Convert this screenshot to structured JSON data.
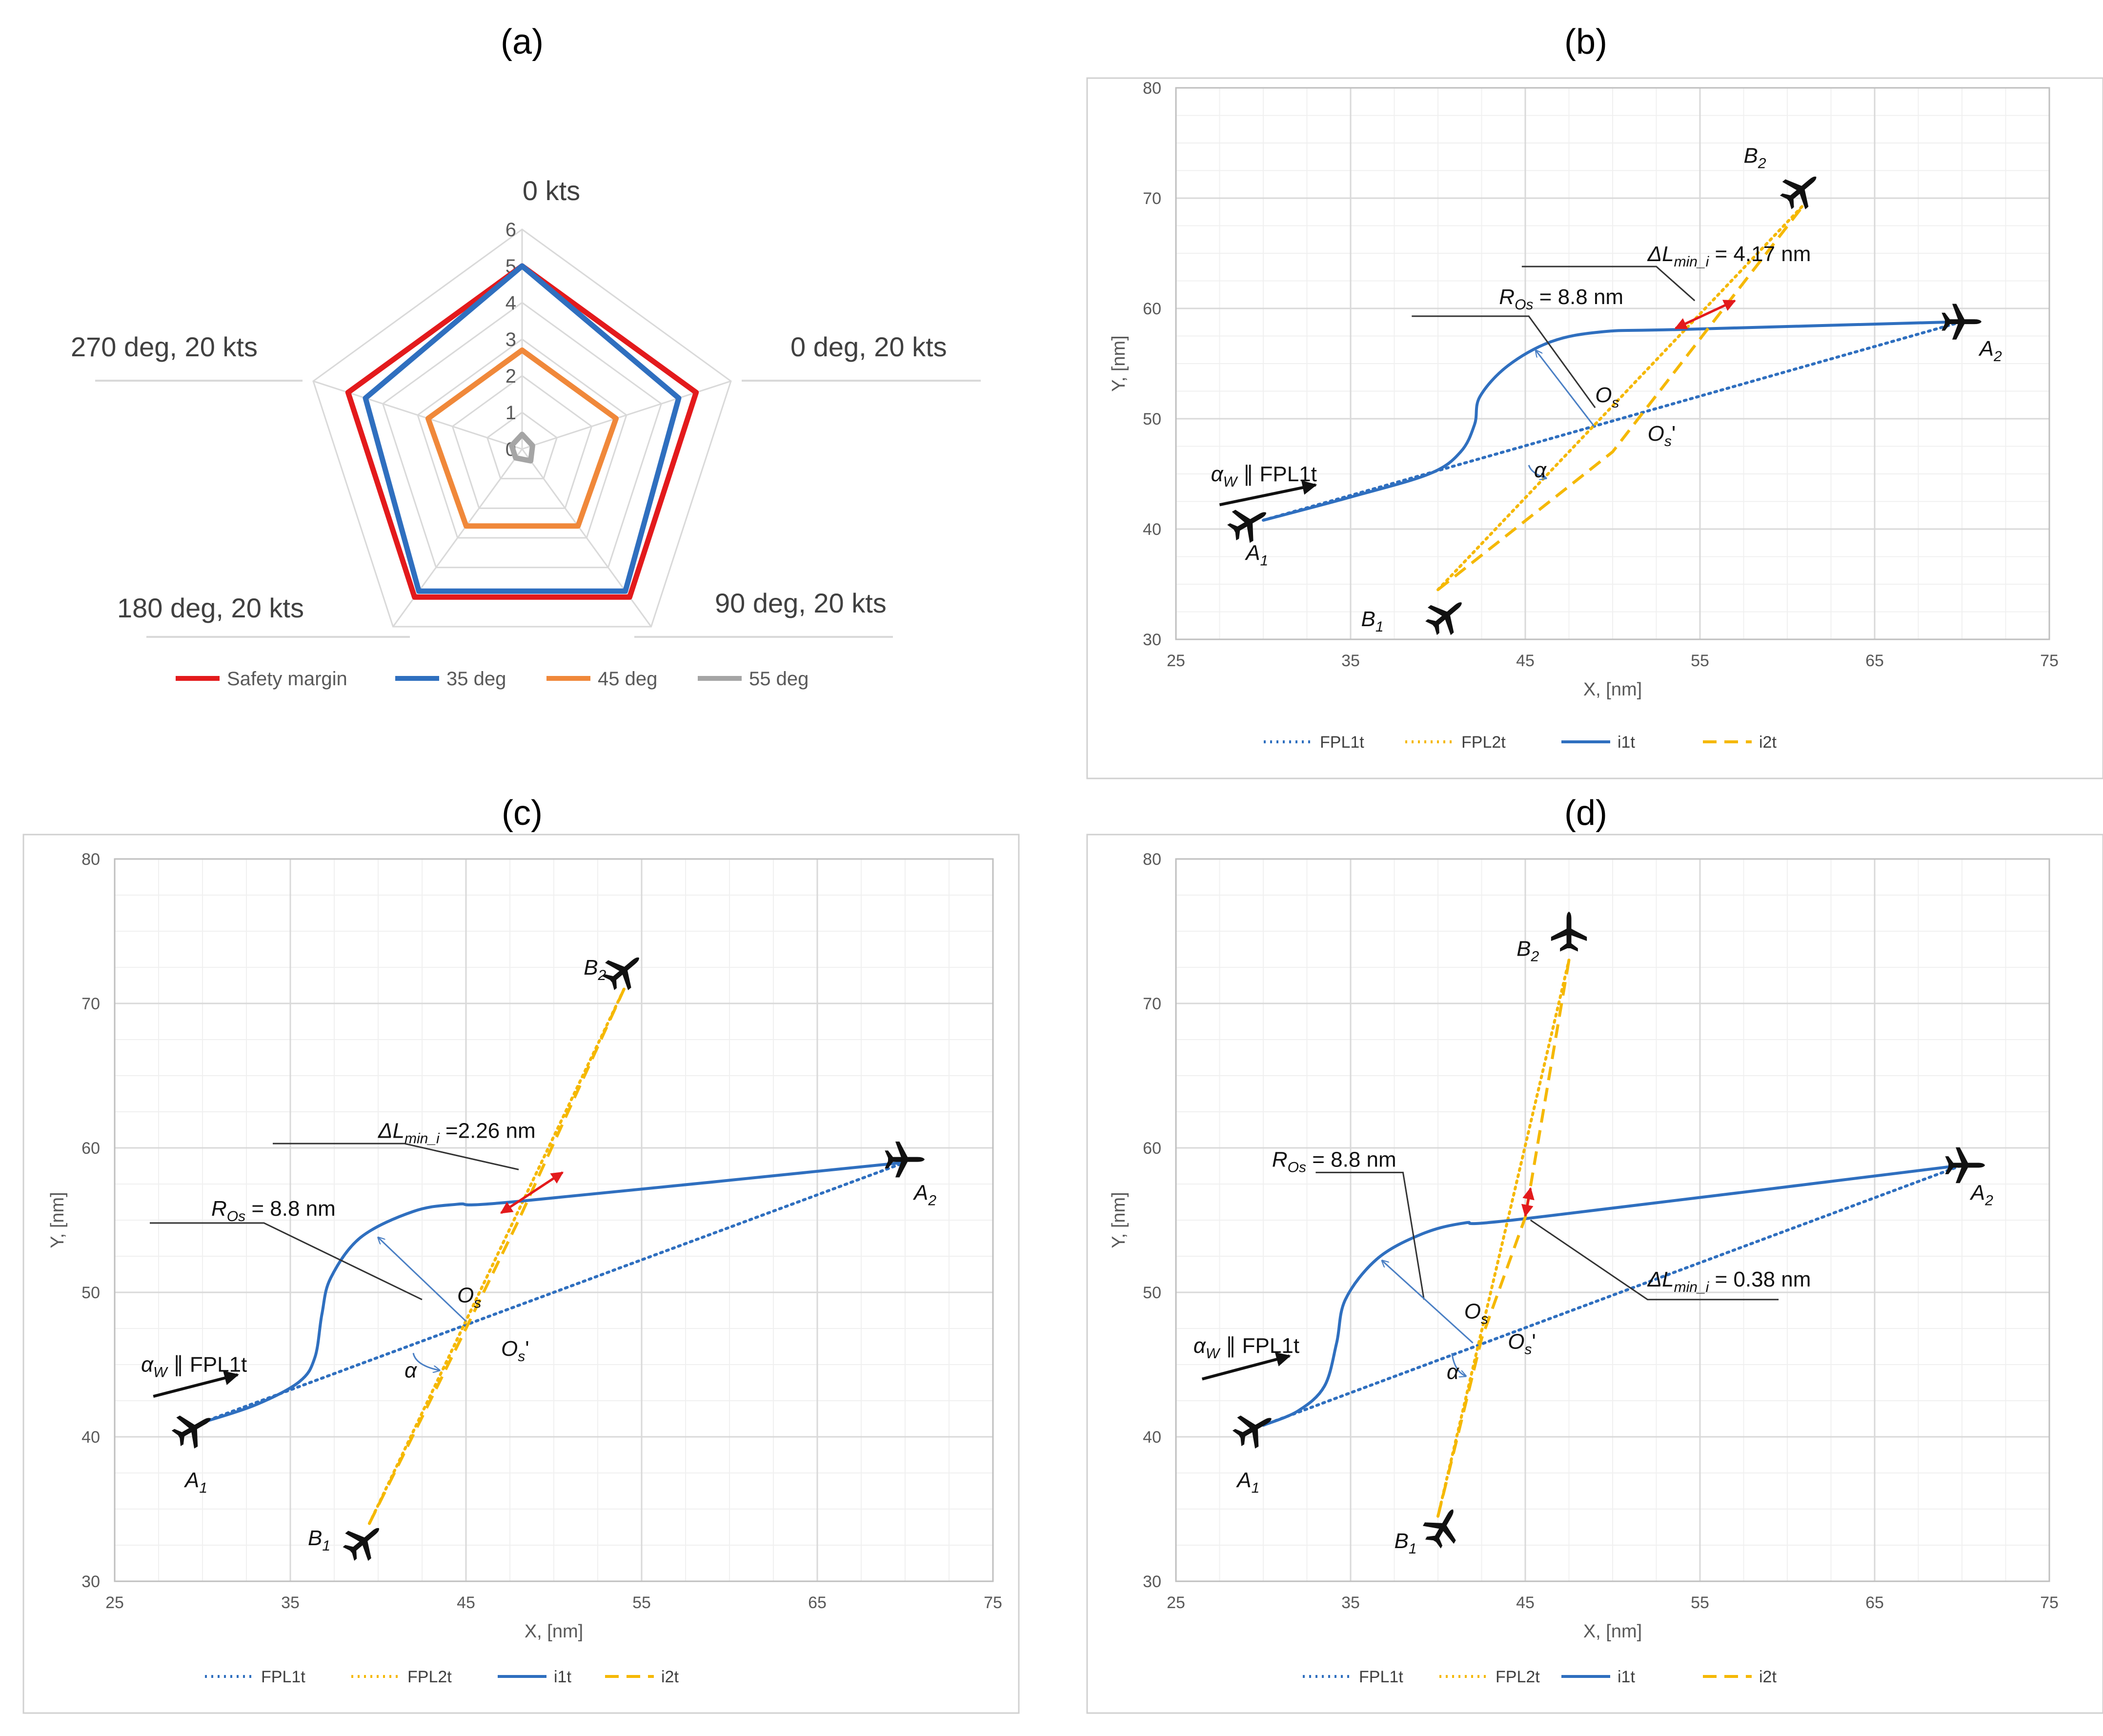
{
  "chart_data": [
    {
      "panel": "(a)",
      "type": "radar",
      "axes": [
        "0 kts",
        "0 deg, 20 kts",
        "90 deg, 20 kts",
        "180 deg, 20 kts",
        "270 deg, 20 kts"
      ],
      "rmax": 6,
      "ticks": [
        "0",
        "1",
        "2",
        "3",
        "4",
        "5",
        "6"
      ],
      "series": [
        {
          "name": "Safety margin",
          "color": "#e31a1c",
          "values": [
            5,
            5,
            5,
            5,
            5
          ]
        },
        {
          "name": "35 deg",
          "color": "#2f6fbf",
          "values": [
            5,
            4.5,
            4.8,
            4.8,
            4.5
          ]
        },
        {
          "name": "45 deg",
          "color": "#f0883a",
          "values": [
            2.7,
            2.7,
            2.6,
            2.6,
            2.7
          ]
        },
        {
          "name": "55 deg",
          "color": "#a5a5a5",
          "values": [
            0.4,
            0.3,
            0.4,
            0.3,
            0.3
          ]
        }
      ]
    },
    {
      "panel": "(b)",
      "type": "line",
      "xlabel": "X, [nm]",
      "ylabel": "Y, [nm]",
      "xlim": [
        25,
        75
      ],
      "ylim": [
        30,
        80
      ],
      "xticks": [
        "25",
        "35",
        "45",
        "55",
        "65",
        "75"
      ],
      "yticks": [
        "30",
        "40",
        "50",
        "60",
        "70",
        "80"
      ],
      "series": [
        {
          "name": "FPL1t",
          "style": "dotted",
          "color": "#2f6fbf",
          "points": [
            [
              30,
              40.8
            ],
            [
              70,
              58.8
            ]
          ]
        },
        {
          "name": "FPL2t",
          "style": "dotted",
          "color": "#f5b800",
          "points": [
            [
              40,
              34.5
            ],
            [
              61,
              69.5
            ]
          ]
        },
        {
          "name": "i1t",
          "style": "solid",
          "color": "#2f6fbf",
          "points": [
            [
              30,
              40.8
            ],
            [
              35,
              42.9
            ],
            [
              39.5,
              45
            ],
            [
              41.3,
              47
            ],
            [
              42.1,
              49.5
            ],
            [
              42.4,
              52
            ],
            [
              44,
              54.8
            ],
            [
              46.5,
              57
            ],
            [
              49.5,
              57.9
            ],
            [
              54,
              58.1
            ],
            [
              70,
              58.8
            ]
          ]
        },
        {
          "name": "i2t",
          "style": "dashed",
          "color": "#f5b800",
          "points": [
            [
              40,
              34.5
            ],
            [
              50,
              47
            ],
            [
              61,
              69.5
            ]
          ]
        }
      ],
      "annotations": {
        "dl": "ΔL",
        "dl_sub": "min_i",
        "dl_value": " = 4.17 nm",
        "r": "R",
        "r_sub": "Os",
        "r_value": " = 8.8 nm",
        "os": "O",
        "os_sub": "s",
        "os2_suffix": "'",
        "alpha": "α",
        "wind": "α",
        "wind_sub": "W",
        "wind_rest": " ∥ FPL1t",
        "a1": "A",
        "a1_sub": "1",
        "a2": "A",
        "a2_sub": "2",
        "b1": "B",
        "b1_sub": "1",
        "b2": "B",
        "b2_sub": "2"
      }
    },
    {
      "panel": "(c)",
      "type": "line",
      "xlabel": "X,  [nm]",
      "ylabel": "Y, [nm]",
      "xlim": [
        25,
        75
      ],
      "ylim": [
        30,
        80
      ],
      "xticks": [
        "25",
        "35",
        "45",
        "55",
        "65",
        "75"
      ],
      "yticks": [
        "30",
        "40",
        "50",
        "60",
        "70",
        "80"
      ],
      "series": [
        {
          "name": "FPL1t",
          "style": "dotted",
          "color": "#2f6fbf",
          "points": [
            [
              30,
              41
            ],
            [
              70,
              59
            ]
          ]
        },
        {
          "name": "FPL2t",
          "style": "dotted",
          "color": "#f5b800",
          "points": [
            [
              39.5,
              34
            ],
            [
              54,
              71
            ]
          ]
        },
        {
          "name": "i1t",
          "style": "solid",
          "color": "#2f6fbf",
          "points": [
            [
              30,
              41
            ],
            [
              33,
              42.2
            ],
            [
              35.5,
              43.8
            ],
            [
              36.4,
              45.5
            ],
            [
              36.8,
              48.5
            ],
            [
              37.3,
              51
            ],
            [
              39,
              53.8
            ],
            [
              42,
              55.6
            ],
            [
              44.5,
              56.1
            ],
            [
              48,
              56.3
            ],
            [
              70,
              59
            ]
          ]
        },
        {
          "name": "i2t",
          "style": "dashed",
          "color": "#f5b800",
          "points": [
            [
              39.5,
              34
            ],
            [
              45,
              47.5
            ],
            [
              48,
              55
            ],
            [
              54,
              71
            ]
          ]
        }
      ],
      "annotations": {
        "dl": "ΔL",
        "dl_sub": "min_i",
        "dl_value": " =2.26 nm",
        "r": "R",
        "r_sub": "Os",
        "r_value": " = 8.8 nm",
        "os": "O",
        "os_sub": "s",
        "os2_suffix": "'",
        "alpha": "α",
        "wind": "α",
        "wind_sub": "W",
        "wind_rest": " ∥ FPL1t",
        "a1": "A",
        "a1_sub": "1",
        "a2": "A",
        "a2_sub": "2",
        "b1": "B",
        "b1_sub": "1",
        "b2": "B",
        "b2_sub": "2"
      }
    },
    {
      "panel": "(d)",
      "type": "line",
      "xlabel": "X, [nm]",
      "ylabel": "Y, [nm]",
      "xlim": [
        25,
        75
      ],
      "ylim": [
        30,
        80
      ],
      "xticks": [
        "25",
        "35",
        "45",
        "55",
        "65",
        "75"
      ],
      "yticks": [
        "30",
        "40",
        "50",
        "60",
        "70",
        "80"
      ],
      "series": [
        {
          "name": "FPL1t",
          "style": "dotted",
          "color": "#2f6fbf",
          "points": [
            [
              30,
              40.8
            ],
            [
              70,
              58.8
            ]
          ]
        },
        {
          "name": "FPL2t",
          "style": "dotted",
          "color": "#f5b800",
          "points": [
            [
              40,
              34.5
            ],
            [
              47.5,
              73
            ]
          ]
        },
        {
          "name": "i1t",
          "style": "solid",
          "color": "#2f6fbf",
          "points": [
            [
              30,
              40.8
            ],
            [
              32,
              41.8
            ],
            [
              33.5,
              43.5
            ],
            [
              34.2,
              46.5
            ],
            [
              34.7,
              49.5
            ],
            [
              36.5,
              52.3
            ],
            [
              39,
              54
            ],
            [
              41.5,
              54.8
            ],
            [
              45,
              55.1
            ],
            [
              70,
              58.8
            ]
          ]
        },
        {
          "name": "i2t",
          "style": "dashed",
          "color": "#f5b800",
          "points": [
            [
              40,
              34.5
            ],
            [
              42.5,
              46.8
            ],
            [
              45,
              55.2
            ],
            [
              47.5,
              73
            ]
          ]
        }
      ],
      "annotations": {
        "dl": "ΔL",
        "dl_sub": "min_i",
        "dl_value": " = 0.38 nm",
        "r": "R",
        "r_sub": "Os",
        "r_value": " = 8.8 nm",
        "os": "O",
        "os_sub": "s",
        "os2_suffix": "'",
        "alpha": "α",
        "wind": "α",
        "wind_sub": "W",
        "wind_rest": " ∥ FPL1t",
        "a1": "A",
        "a1_sub": "1",
        "a2": "A",
        "a2_sub": "2",
        "b1": "B",
        "b1_sub": "1",
        "b2": "B",
        "b2_sub": "2"
      }
    }
  ]
}
